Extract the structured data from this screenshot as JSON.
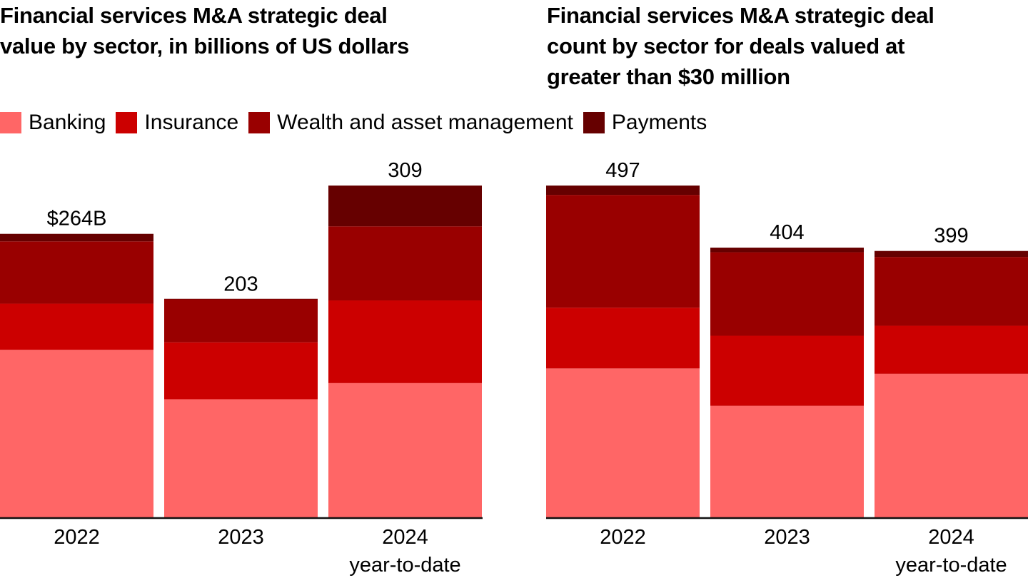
{
  "legend": [
    {
      "label": "Banking",
      "color": "#FF6666"
    },
    {
      "label": "Insurance",
      "color": "#CC0000"
    },
    {
      "label": "Wealth and asset management",
      "color": "#990000"
    },
    {
      "label": "Payments",
      "color": "#660000"
    }
  ],
  "chart_data": [
    {
      "type": "bar",
      "stacked": true,
      "title": "Financial services M&A strategic deal value by sector, in billions of US dollars",
      "title_lines": [
        "Financial services M&A strategic deal",
        "value by sector, in billions of US dollars"
      ],
      "categories": [
        "2022",
        "2023",
        "2024"
      ],
      "category_sublabels": [
        "",
        "",
        "year-to-date"
      ],
      "series": [
        {
          "name": "Banking",
          "values": [
            156,
            110,
            125
          ]
        },
        {
          "name": "Insurance",
          "values": [
            43,
            53,
            77
          ]
        },
        {
          "name": "Wealth and asset management",
          "values": [
            58,
            40,
            69
          ]
        },
        {
          "name": "Payments",
          "values": [
            7,
            0.5,
            38
          ]
        }
      ],
      "totals": [
        264,
        203,
        309
      ],
      "total_labels": [
        "$264B",
        "203",
        "309"
      ],
      "xlabel": "",
      "ylabel": "",
      "ylim": [
        0,
        309
      ],
      "grid": false,
      "legend": "top-left"
    },
    {
      "type": "bar",
      "stacked": true,
      "title": "Financial services M&A strategic deal count by sector for deals valued at greater than $30 million",
      "title_lines": [
        "Financial services M&A strategic deal",
        "count by sector for deals valued at",
        "greater than $30 million"
      ],
      "categories": [
        "2022",
        "2023",
        "2024"
      ],
      "category_sublabels": [
        "",
        "",
        "year-to-date"
      ],
      "series": [
        {
          "name": "Banking",
          "values": [
            223,
            167,
            215
          ]
        },
        {
          "name": "Insurance",
          "values": [
            91,
            105,
            72
          ]
        },
        {
          "name": "Wealth and asset management",
          "values": [
            169,
            125,
            103
          ]
        },
        {
          "name": "Payments",
          "values": [
            14,
            7,
            9
          ]
        }
      ],
      "totals": [
        497,
        404,
        399
      ],
      "total_labels": [
        "497",
        "404",
        "399"
      ],
      "xlabel": "",
      "ylabel": "",
      "ylim": [
        0,
        497
      ],
      "grid": false,
      "legend": "top-left"
    }
  ]
}
